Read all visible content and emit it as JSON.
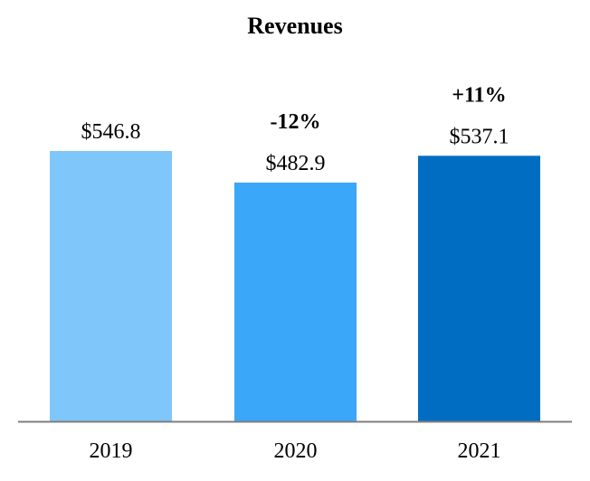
{
  "chart_data": {
    "type": "bar",
    "title": "Revenues",
    "categories": [
      "2019",
      "2020",
      "2021"
    ],
    "values": [
      546.8,
      482.9,
      537.1
    ],
    "value_labels": [
      "$546.8",
      "$482.9",
      "$537.1"
    ],
    "change_labels": [
      "",
      "-12%",
      "+11%"
    ],
    "bar_colors": [
      "#7fc6fb",
      "#3aa7f8",
      "#006dc2"
    ],
    "axis_color": "#7f7f7f",
    "xlabel": "",
    "ylabel": "",
    "ylim": [
      0,
      546.8
    ],
    "grid": false
  }
}
